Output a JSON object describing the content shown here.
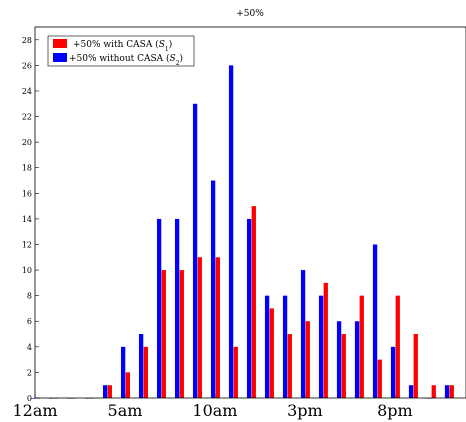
{
  "chart_data": {
    "type": "bar",
    "title": "+50%",
    "xlabel": "",
    "ylabel": "",
    "ylim": [
      0,
      29
    ],
    "yticks": [
      0,
      2,
      4,
      6,
      8,
      10,
      12,
      14,
      16,
      18,
      20,
      22,
      24,
      26,
      28
    ],
    "grid": false,
    "legend_position": "top-left",
    "x_tick_labels": [
      {
        "label": "12am",
        "hour": 0
      },
      {
        "label": "5am",
        "hour": 5
      },
      {
        "label": "10am",
        "hour": 10
      },
      {
        "label": "3pm",
        "hour": 15
      },
      {
        "label": "8pm",
        "hour": 20
      }
    ],
    "hours": [
      0,
      1,
      2,
      3,
      4,
      5,
      6,
      7,
      8,
      9,
      10,
      11,
      12,
      13,
      14,
      15,
      16,
      17,
      18,
      19,
      20,
      21,
      22,
      23
    ],
    "series": [
      {
        "name": "+50% with CASA (S1)",
        "color": "#ff0000",
        "values": [
          0,
          0,
          0,
          0,
          1,
          2,
          4,
          10,
          10,
          11,
          11,
          4,
          15,
          7,
          5,
          6,
          9,
          5,
          8,
          3,
          8,
          5,
          1,
          1
        ]
      },
      {
        "name": "+50% without CASA (S2)",
        "color": "#0000ff",
        "values": [
          0,
          0,
          0,
          0,
          1,
          4,
          5,
          14,
          14,
          23,
          17,
          26,
          14,
          8,
          8,
          10,
          8,
          6,
          6,
          12,
          4,
          1,
          0,
          1
        ]
      }
    ]
  },
  "legend": {
    "entries": [
      {
        "prefix": "+50% with CASA (",
        "sym": "S",
        "sub": "1",
        "suffix": ")"
      },
      {
        "prefix": "+50% without CASA (",
        "sym": "S",
        "sub": "2",
        "suffix": ")"
      }
    ]
  }
}
